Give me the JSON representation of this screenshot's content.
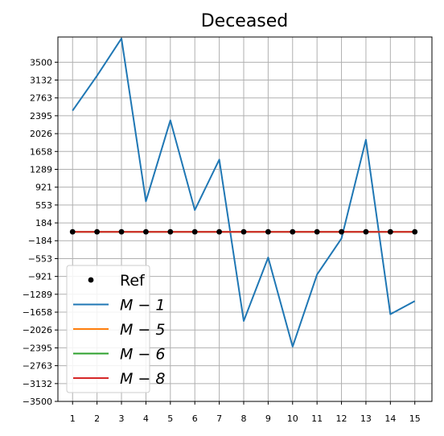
{
  "chart_data": {
    "type": "line",
    "title": "Deceased",
    "xlabel": "",
    "ylabel": "",
    "x": [
      1,
      2,
      3,
      4,
      5,
      6,
      7,
      8,
      9,
      10,
      11,
      12,
      13,
      14,
      15
    ],
    "xlim": [
      0.4,
      15.7
    ],
    "ylim": [
      -3500,
      4020
    ],
    "yticks": [
      -3500,
      -3132,
      -2763,
      -2395,
      -2026,
      -1658,
      -1289,
      -921,
      -553,
      -184,
      184,
      553,
      921,
      1289,
      1658,
      2026,
      2395,
      2763,
      3132,
      3500
    ],
    "grid": true,
    "legend_position": "lower-left",
    "series": [
      {
        "name": "Ref",
        "style": "markers",
        "color": "#000000",
        "values": [
          0,
          0,
          0,
          0,
          0,
          0,
          0,
          0,
          0,
          0,
          0,
          0,
          0,
          0,
          0
        ]
      },
      {
        "name": "M − 1",
        "style": "line",
        "color": "#1f77b4",
        "values": [
          2500,
          3220,
          3990,
          630,
          2300,
          450,
          1490,
          -1840,
          -530,
          -2370,
          -880,
          -140,
          1900,
          -1700,
          -1430
        ]
      },
      {
        "name": "M − 5",
        "style": "line",
        "color": "#ff7f0e",
        "values": [
          0,
          0,
          0,
          0,
          0,
          0,
          0,
          0,
          0,
          0,
          0,
          0,
          0,
          0,
          0
        ]
      },
      {
        "name": "M − 6",
        "style": "line",
        "color": "#2ca02c",
        "values": [
          0,
          0,
          0,
          0,
          0,
          0,
          0,
          0,
          0,
          0,
          0,
          0,
          0,
          0,
          0
        ]
      },
      {
        "name": "M − 8",
        "style": "line",
        "color": "#d62728",
        "values": [
          0,
          0,
          0,
          0,
          0,
          0,
          0,
          0,
          0,
          0,
          0,
          0,
          0,
          0,
          0
        ]
      }
    ]
  }
}
